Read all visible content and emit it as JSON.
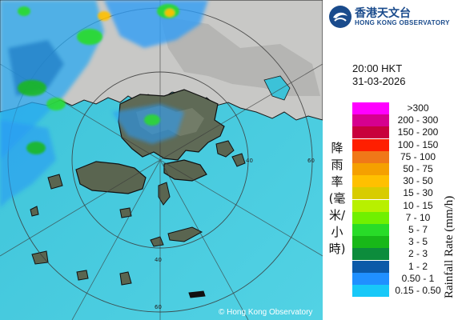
{
  "header": {
    "org_chinese": "香港天文台",
    "org_english": "HONG KONG OBSERVATORY"
  },
  "timestamp": {
    "time": "20:00 HKT",
    "date": "31-03-2026"
  },
  "legend": {
    "title_chinese": "降雨率(毫米/小時)",
    "title_english": "Rainfall Rate (mm/h)",
    "items": [
      {
        "label": ">300",
        "color": "#ff00ff"
      },
      {
        "label": "200 - 300",
        "color": "#d6008f"
      },
      {
        "label": "150 - 200",
        "color": "#c8003c"
      },
      {
        "label": "100 - 150",
        "color": "#ff1f00"
      },
      {
        "label": "75 - 100",
        "color": "#f07818"
      },
      {
        "label": "50 - 75",
        "color": "#f5a000"
      },
      {
        "label": "30 - 50",
        "color": "#ffc000"
      },
      {
        "label": "15 - 30",
        "color": "#d8cc00"
      },
      {
        "label": "10 - 15",
        "color": "#b8f000"
      },
      {
        "label": "7 - 10",
        "color": "#70f000"
      },
      {
        "label": "5 - 7",
        "color": "#28dc28"
      },
      {
        "label": "3 - 5",
        "color": "#18b818"
      },
      {
        "label": "2 - 3",
        "color": "#0c8c3c"
      },
      {
        "label": "1 - 2",
        "color": "#0c5aa8"
      },
      {
        "label": "0.50 - 1",
        "color": "#2090ff"
      },
      {
        "label": "0.15 - 0.50",
        "color": "#18c8f8"
      }
    ]
  },
  "map": {
    "range_rings": [
      "40",
      "60",
      "60",
      "40"
    ],
    "copyright": "© Hong Kong Observatory"
  }
}
